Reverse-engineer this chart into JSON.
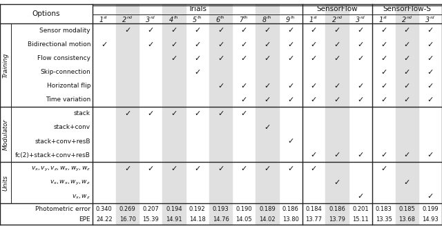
{
  "col_groups": [
    {
      "label": "Trials",
      "start": 0,
      "end": 8
    },
    {
      "label": "SensorFlow",
      "start": 9,
      "end": 11
    },
    {
      "label": "SensorFlow-S",
      "start": 12,
      "end": 14
    }
  ],
  "col_superscripts": [
    [
      "1",
      "st"
    ],
    [
      "2",
      "nd"
    ],
    [
      "3",
      "rd"
    ],
    [
      "4",
      "th"
    ],
    [
      "5",
      "th"
    ],
    [
      "6",
      "th"
    ],
    [
      "7",
      "th"
    ],
    [
      "8",
      "th"
    ],
    [
      "9",
      "th"
    ],
    [
      "1",
      "st"
    ],
    [
      "2",
      "nd"
    ],
    [
      "3",
      "rd"
    ],
    [
      "1",
      "st"
    ],
    [
      "2",
      "nd"
    ],
    [
      "3",
      "rd"
    ]
  ],
  "row_groups": [
    {
      "group_label": "Training",
      "rows": [
        {
          "label": "Sensor modality",
          "checks": [
            0,
            1,
            1,
            1,
            1,
            1,
            1,
            1,
            1,
            1,
            1,
            1,
            1,
            1,
            1
          ]
        },
        {
          "label": "Bidirectional motion",
          "checks": [
            1,
            0,
            1,
            1,
            1,
            1,
            1,
            1,
            1,
            1,
            1,
            1,
            1,
            1,
            1
          ]
        },
        {
          "label": "Flow consistency",
          "checks": [
            0,
            0,
            0,
            1,
            1,
            1,
            1,
            1,
            1,
            1,
            1,
            1,
            1,
            1,
            1
          ]
        },
        {
          "label": "Skip-connection",
          "checks": [
            0,
            0,
            0,
            0,
            1,
            0,
            0,
            0,
            0,
            0,
            0,
            0,
            1,
            1,
            1
          ]
        },
        {
          "label": "Horizontal flip",
          "checks": [
            0,
            0,
            0,
            0,
            0,
            1,
            1,
            1,
            1,
            1,
            1,
            1,
            1,
            1,
            1
          ]
        },
        {
          "label": "Time variation",
          "checks": [
            0,
            0,
            0,
            0,
            0,
            0,
            1,
            1,
            1,
            1,
            1,
            1,
            1,
            1,
            1
          ]
        }
      ]
    },
    {
      "group_label": "Modulator",
      "rows": [
        {
          "label": "stack",
          "checks": [
            0,
            1,
            1,
            1,
            1,
            1,
            1,
            0,
            0,
            0,
            0,
            0,
            0,
            0,
            0
          ]
        },
        {
          "label": "stack+conv",
          "checks": [
            0,
            0,
            0,
            0,
            0,
            0,
            0,
            1,
            0,
            0,
            0,
            0,
            0,
            0,
            0
          ]
        },
        {
          "label": "stack+conv+resB",
          "checks": [
            0,
            0,
            0,
            0,
            0,
            0,
            0,
            0,
            1,
            0,
            0,
            0,
            0,
            0,
            0
          ]
        },
        {
          "label": "fc(2)+stack+conv+resB",
          "checks": [
            0,
            0,
            0,
            0,
            0,
            0,
            0,
            0,
            0,
            1,
            1,
            1,
            1,
            1,
            1
          ]
        }
      ]
    },
    {
      "group_label": "Units",
      "rows": [
        {
          "label": "$v_x, v_y, v_z, w_x, w_y, w_z$",
          "checks": [
            0,
            1,
            1,
            1,
            1,
            1,
            1,
            1,
            1,
            1,
            0,
            0,
            1,
            0,
            0
          ]
        },
        {
          "label": "$v_x, w_x, w_y, w_z$",
          "checks": [
            0,
            0,
            0,
            0,
            0,
            0,
            0,
            0,
            0,
            0,
            1,
            0,
            0,
            1,
            0
          ]
        },
        {
          "label": "$v_x, w_z$",
          "checks": [
            0,
            0,
            0,
            0,
            0,
            0,
            0,
            0,
            0,
            0,
            0,
            1,
            0,
            0,
            1
          ]
        }
      ]
    }
  ],
  "bottom_rows": [
    {
      "label": "Photometric error",
      "values": [
        "0.340",
        "0.269",
        "0.207",
        "0.194",
        "0.192",
        "0.193",
        "0.190",
        "0.189",
        "0.186",
        "0.184",
        "0.186",
        "0.201",
        "0.183",
        "0.185",
        "0.199"
      ]
    },
    {
      "label": "EPE",
      "values": [
        "24.22",
        "16.70",
        "15.39",
        "14.91",
        "14.18",
        "14.76",
        "14.05",
        "14.02",
        "13.80",
        "13.77",
        "13.79",
        "15.11",
        "13.35",
        "13.68",
        "14.93"
      ]
    }
  ],
  "shaded_cols": [
    1,
    3,
    5,
    7,
    10,
    13
  ],
  "bg_color": "#ffffff",
  "shade_color": "#e0e0e0",
  "line_color": "#222222",
  "text_color": "#111111",
  "options_label": "Options"
}
